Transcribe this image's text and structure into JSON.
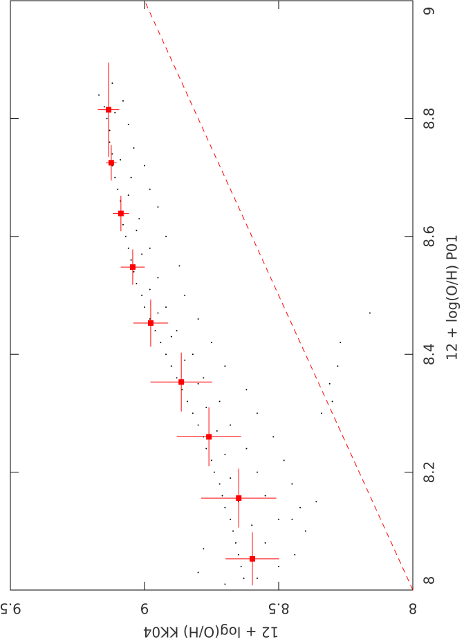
{
  "chart_data": {
    "type": "scatter",
    "xlabel": "12 + log(O/H) KK04",
    "ylabel": "12 + log(O/H) P01",
    "xlim": [
      9.5,
      8
    ],
    "ylim": [
      8,
      9
    ],
    "xticks": [
      9.5,
      9,
      8.5,
      8
    ],
    "yticks": [
      8,
      8.2,
      8.4,
      8.6,
      8.8,
      9
    ],
    "series": [
      {
        "type": "scatter",
        "color": "#000000",
        "x": [
          9.17,
          9.15,
          9.14,
          9.13,
          9.13,
          9.12,
          9.12,
          9.11,
          9.1,
          9.09,
          9.09,
          9.08,
          9.07,
          9.06,
          9.05,
          9.04,
          9.03,
          9.01,
          9.0,
          8.98,
          8.96,
          8.94,
          8.92,
          8.9,
          8.88,
          8.86,
          8.84,
          8.82,
          8.8,
          8.78,
          8.77,
          8.75,
          8.74,
          8.72,
          8.71,
          8.7,
          8.68,
          8.67,
          8.66,
          8.65,
          8.64,
          8.63,
          9.12,
          9.08,
          9.06,
          9.04,
          9.0,
          9.05,
          8.98,
          8.95,
          9.02,
          8.92,
          8.98,
          8.87,
          8.95,
          8.85,
          8.92,
          8.8,
          8.88,
          8.75,
          8.82,
          8.7,
          8.78,
          8.62,
          8.72,
          8.58,
          8.68,
          8.52,
          8.62,
          8.48,
          8.58,
          8.45,
          8.55,
          8.42,
          8.5,
          8.4,
          8.55,
          8.44,
          8.5,
          8.58,
          8.7,
          8.8,
          8.78,
          8.6,
          8.65,
          8.68,
          8.7,
          8.73,
          8.77,
          8.8,
          8.85,
          8.9,
          8.95,
          8.98,
          9.01,
          9.03,
          9.06,
          9.09,
          9.11,
          8.31,
          8.3,
          8.34,
          8.28,
          8.27,
          8.16,
          8.45,
          8.36
        ],
        "values": [
          8.84,
          8.82,
          8.8,
          8.78,
          8.76,
          8.74,
          8.72,
          8.7,
          8.68,
          8.66,
          8.64,
          8.62,
          8.6,
          8.58,
          8.56,
          8.54,
          8.52,
          8.5,
          8.48,
          8.46,
          8.44,
          8.42,
          8.4,
          8.38,
          8.36,
          8.34,
          8.32,
          8.3,
          8.28,
          8.26,
          8.24,
          8.22,
          8.2,
          8.18,
          8.16,
          8.14,
          8.12,
          8.1,
          8.08,
          8.06,
          8.04,
          8.02,
          8.86,
          8.83,
          8.79,
          8.75,
          8.72,
          8.7,
          8.68,
          8.65,
          8.63,
          8.6,
          8.58,
          8.55,
          8.53,
          8.5,
          8.48,
          8.46,
          8.44,
          8.42,
          8.4,
          8.38,
          8.36,
          8.34,
          8.32,
          8.3,
          8.28,
          8.26,
          8.24,
          8.22,
          8.2,
          8.18,
          8.16,
          8.14,
          8.12,
          8.1,
          8.08,
          8.06,
          8.04,
          8.02,
          8.01,
          8.03,
          8.07,
          8.11,
          8.15,
          8.19,
          8.23,
          8.27,
          8.31,
          8.35,
          8.39,
          8.43,
          8.47,
          8.51,
          8.57,
          8.61,
          8.67,
          8.73,
          8.81,
          8.35,
          8.32,
          8.3,
          8.38,
          8.42,
          8.47,
          8.12,
          8.15
        ]
      },
      {
        "type": "errorbar",
        "color": "#ff0000",
        "x": [
          9.134,
          9.124,
          9.088,
          9.044,
          8.977,
          8.863,
          8.76,
          8.649,
          8.598
        ],
        "values": [
          8.815,
          8.725,
          8.639,
          8.548,
          8.453,
          8.353,
          8.26,
          8.156,
          8.053
        ],
        "xerr": [
          0.04,
          0.02,
          0.03,
          0.045,
          0.065,
          0.115,
          0.12,
          0.14,
          0.1
        ],
        "yerr": [
          0.08,
          0.03,
          0.03,
          0.03,
          0.04,
          0.05,
          0.05,
          0.05,
          0.045
        ]
      },
      {
        "type": "line",
        "color": "#ff0000",
        "dashed": true,
        "x": [
          8,
          9
        ],
        "values": [
          8,
          9
        ]
      }
    ]
  }
}
